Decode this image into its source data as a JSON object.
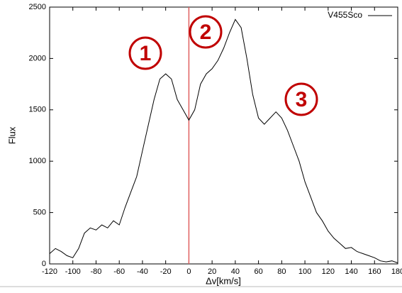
{
  "chart_data": {
    "type": "line",
    "xlabel": "Δv[km/s]",
    "ylabel": "Flux",
    "x": [
      -120,
      -115,
      -110,
      -105,
      -100,
      -95,
      -90,
      -85,
      -80,
      -75,
      -70,
      -65,
      -60,
      -55,
      -50,
      -45,
      -40,
      -35,
      -30,
      -25,
      -20,
      -15,
      -10,
      -5,
      0,
      5,
      10,
      15,
      20,
      25,
      30,
      35,
      40,
      45,
      50,
      55,
      60,
      65,
      70,
      75,
      80,
      85,
      90,
      95,
      100,
      105,
      110,
      115,
      120,
      125,
      130,
      135,
      140,
      145,
      150,
      155,
      160,
      165,
      170,
      175,
      180
    ],
    "series": [
      {
        "name": "V455Sco",
        "color": "#000000",
        "values": [
          100,
          150,
          120,
          80,
          60,
          150,
          300,
          350,
          330,
          380,
          350,
          420,
          380,
          550,
          700,
          850,
          1100,
          1350,
          1600,
          1800,
          1850,
          1800,
          1600,
          1500,
          1400,
          1500,
          1750,
          1850,
          1900,
          1980,
          2100,
          2250,
          2380,
          2300,
          2000,
          1650,
          1420,
          1360,
          1420,
          1480,
          1420,
          1300,
          1150,
          1000,
          800,
          650,
          500,
          420,
          320,
          250,
          200,
          150,
          160,
          120,
          100,
          80,
          60,
          30,
          20,
          30,
          10
        ]
      }
    ],
    "xlim": [
      -120,
      180
    ],
    "ylim": [
      0,
      2500
    ],
    "xticks": [
      -120,
      -100,
      -80,
      -60,
      -40,
      -20,
      0,
      20,
      40,
      60,
      80,
      100,
      120,
      140,
      160,
      180
    ],
    "yticks": [
      0,
      500,
      1000,
      1500,
      2000,
      2500
    ],
    "vline": {
      "x": 0,
      "color": "#e06060"
    },
    "annotations": [
      "1",
      "2",
      "3"
    ],
    "annotation_color": "#c00000"
  }
}
